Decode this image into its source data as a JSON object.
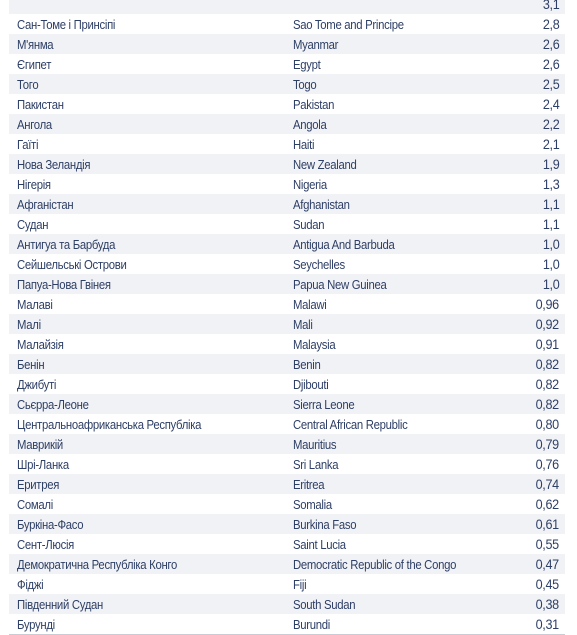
{
  "rows": [
    {
      "uk": "",
      "en": "",
      "val": "3,1"
    },
    {
      "uk": "Сан-Томе і Принсіпі",
      "en": "Sao Tome and Principe",
      "val": "2,8"
    },
    {
      "uk": "М'янма",
      "en": "Myanmar",
      "val": "2,6"
    },
    {
      "uk": "Єгипет",
      "en": "Egypt",
      "val": "2,6"
    },
    {
      "uk": "Того",
      "en": "Togo",
      "val": "2,5"
    },
    {
      "uk": "Пакистан",
      "en": "Pakistan",
      "val": "2,4"
    },
    {
      "uk": "Ангола",
      "en": "Angola",
      "val": "2,2"
    },
    {
      "uk": "Гаїті",
      "en": "Haiti",
      "val": "2,1"
    },
    {
      "uk": "Нова Зеландія",
      "en": "New Zealand",
      "val": "1,9"
    },
    {
      "uk": "Нігерія",
      "en": "Nigeria",
      "val": "1,3"
    },
    {
      "uk": "Афганістан",
      "en": "Afghanistan",
      "val": "1,1"
    },
    {
      "uk": "Судан",
      "en": "Sudan",
      "val": "1,1"
    },
    {
      "uk": "Антигуа та Барбуда",
      "en": "Antigua And Barbuda",
      "val": "1,0"
    },
    {
      "uk": "Сейшельські Острови",
      "en": "Seychelles",
      "val": "1,0"
    },
    {
      "uk": "Папуа-Нова Гвінея",
      "en": "Papua New Guinea",
      "val": "1,0"
    },
    {
      "uk": "Малаві",
      "en": "Malawi",
      "val": "0,96"
    },
    {
      "uk": "Малі",
      "en": "Mali",
      "val": "0,92"
    },
    {
      "uk": "Малайзія",
      "en": "Malaysia",
      "val": "0,91"
    },
    {
      "uk": "Бенін",
      "en": "Benin",
      "val": "0,82"
    },
    {
      "uk": "Джибуті",
      "en": "Djibouti",
      "val": "0,82"
    },
    {
      "uk": "Сьєрра-Леоне",
      "en": "Sierra Leone",
      "val": "0,82"
    },
    {
      "uk": "Центральноафриканська Республіка",
      "en": "Central African Republic",
      "val": "0,80"
    },
    {
      "uk": "Маврикій",
      "en": "Mauritius",
      "val": "0,79"
    },
    {
      "uk": "Шрі-Ланка",
      "en": "Sri Lanka",
      "val": "0,76"
    },
    {
      "uk": "Еритрея",
      "en": "Eritrea",
      "val": "0,74"
    },
    {
      "uk": "Сомалі",
      "en": "Somalia",
      "val": "0,62"
    },
    {
      "uk": "Буркіна-Фасо",
      "en": "Burkina Faso",
      "val": "0,61"
    },
    {
      "uk": "Сент-Люсія",
      "en": "Saint Lucia",
      "val": "0,55"
    },
    {
      "uk": "Демократична Республіка Конго",
      "en": "Democratic Republic of the Congo",
      "val": "0,47"
    },
    {
      "uk": "Фіджі",
      "en": "Fiji",
      "val": "0,45"
    },
    {
      "uk": "Південний Судан",
      "en": "South Sudan",
      "val": "0,38"
    },
    {
      "uk": "Бурунді",
      "en": "Burundi",
      "val": "0,31"
    }
  ]
}
